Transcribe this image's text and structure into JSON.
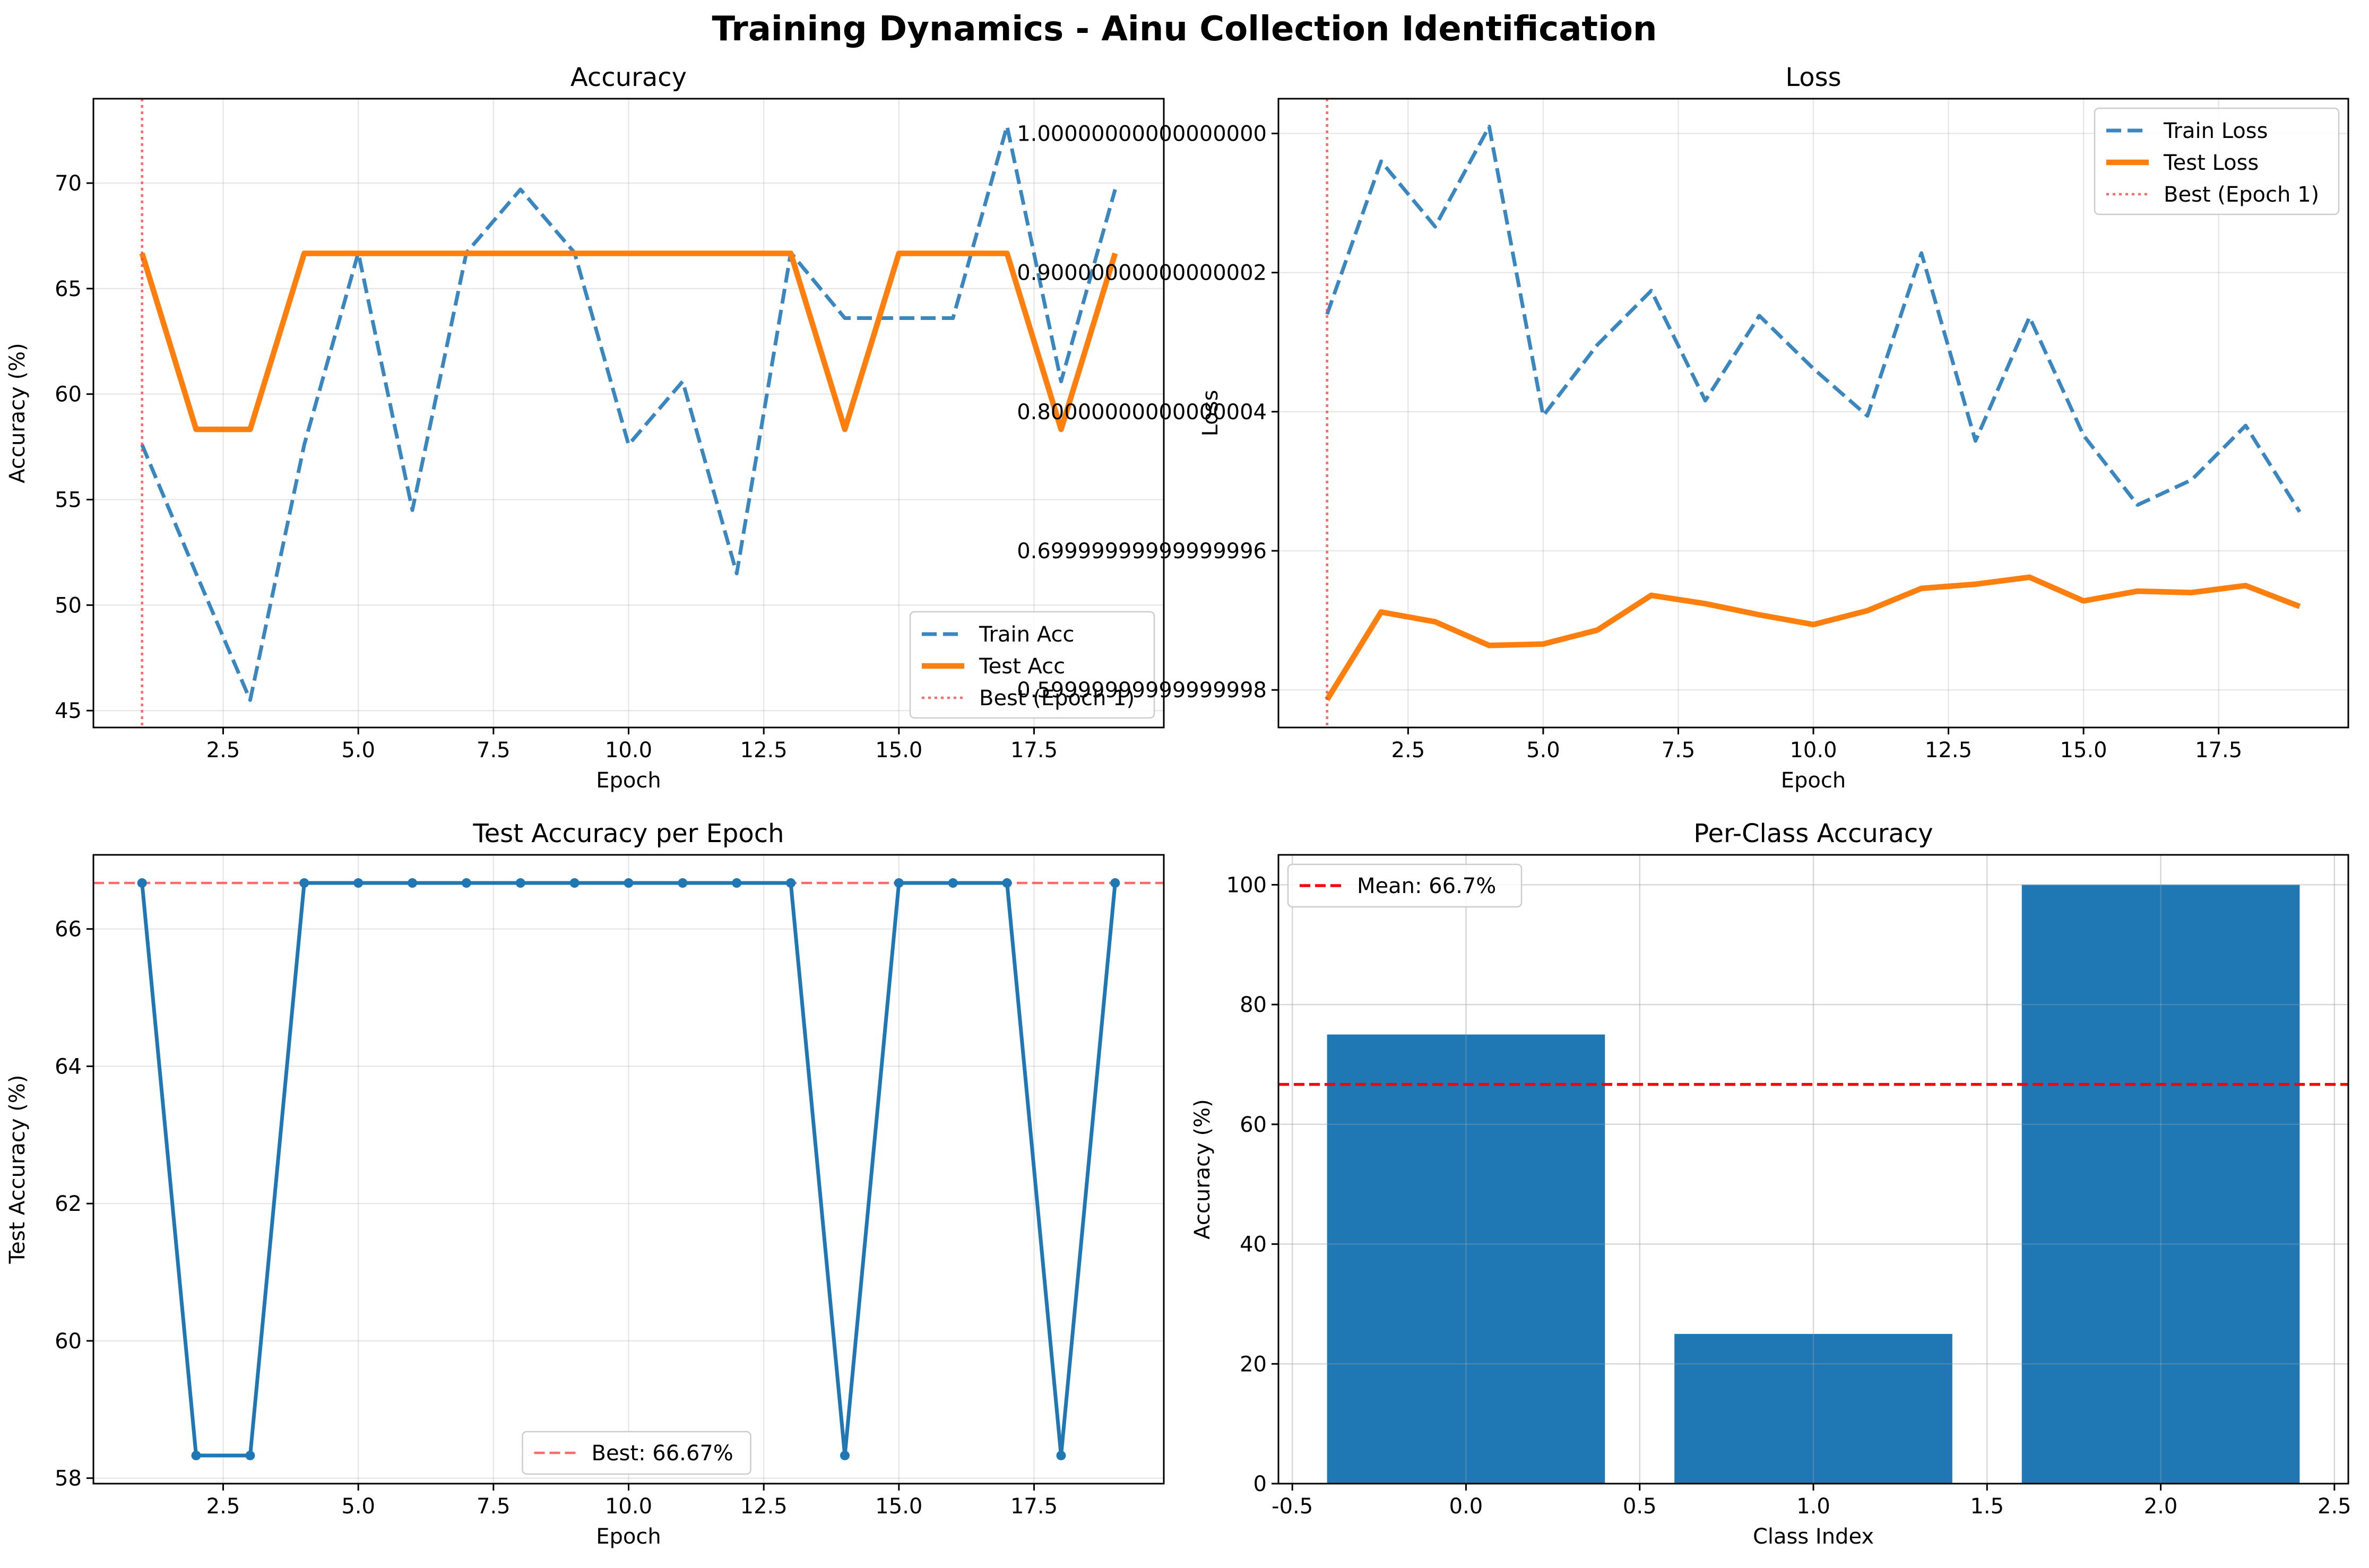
{
  "title": "Training Dynamics - Ainu Collection Identification",
  "colors": {
    "train": "#3a87c0",
    "test": "#ff7f0e",
    "best": "#ff4444",
    "bar": "#1f77b4",
    "mean": "#ff0000",
    "line": "#1f77b4"
  },
  "chart_data": [
    {
      "type": "line",
      "title": "Accuracy",
      "xlabel": "Epoch",
      "ylabel": "Accuracy (%)",
      "xlim": [
        0.1,
        19.9
      ],
      "ylim": [
        44.2,
        74.0
      ],
      "xticks": [
        2.5,
        5.0,
        7.5,
        10.0,
        12.5,
        15.0,
        17.5
      ],
      "yticks": [
        45,
        50,
        55,
        60,
        65,
        70
      ],
      "x": [
        1,
        2,
        3,
        4,
        5,
        6,
        7,
        8,
        9,
        10,
        11,
        12,
        13,
        14,
        15,
        16,
        17,
        18,
        19
      ],
      "series": [
        {
          "name": "Train Acc",
          "style": "dashed",
          "values": [
            57.6,
            51.5,
            45.5,
            57.6,
            66.7,
            54.5,
            66.7,
            69.7,
            66.7,
            57.6,
            60.6,
            51.5,
            66.7,
            63.6,
            63.6,
            63.6,
            72.7,
            60.6,
            69.7
          ]
        },
        {
          "name": "Test Acc",
          "style": "solid",
          "values": [
            66.67,
            58.33,
            58.33,
            66.67,
            66.67,
            66.67,
            66.67,
            66.67,
            66.67,
            66.67,
            66.67,
            66.67,
            66.67,
            58.33,
            66.67,
            66.67,
            66.67,
            58.33,
            66.67
          ]
        }
      ],
      "vline": {
        "x": 1,
        "label": "Best (Epoch 1)"
      },
      "legend": "lower-right",
      "grid": true
    },
    {
      "type": "line",
      "title": "Loss",
      "xlabel": "Epoch",
      "ylabel": "Loss",
      "xlim": [
        0.1,
        19.9
      ],
      "ylim": [
        0.573,
        1.025
      ],
      "xticks": [
        2.5,
        5.0,
        7.5,
        10.0,
        12.5,
        15.0,
        17.5
      ],
      "yticks": [
        0.6,
        0.7,
        0.8,
        0.9,
        1.0
      ],
      "x": [
        1,
        2,
        3,
        4,
        5,
        6,
        7,
        8,
        9,
        10,
        11,
        12,
        13,
        14,
        15,
        16,
        17,
        18,
        19
      ],
      "series": [
        {
          "name": "Train Loss",
          "style": "dashed",
          "values": [
            0.87,
            0.98,
            0.933,
            1.005,
            0.797,
            0.848,
            0.887,
            0.808,
            0.869,
            0.831,
            0.797,
            0.914,
            0.779,
            0.868,
            0.783,
            0.733,
            0.751,
            0.79,
            0.728
          ]
        },
        {
          "name": "Test Loss",
          "style": "solid",
          "values": [
            0.593,
            0.656,
            0.649,
            0.632,
            0.633,
            0.643,
            0.668,
            0.662,
            0.654,
            0.647,
            0.657,
            0.673,
            0.676,
            0.681,
            0.664,
            0.671,
            0.67,
            0.675,
            0.66
          ]
        }
      ],
      "vline": {
        "x": 1,
        "label": "Best (Epoch 1)"
      },
      "legend": "top-right",
      "grid": true
    },
    {
      "type": "line",
      "title": "Test Accuracy per Epoch",
      "xlabel": "Epoch",
      "ylabel": "Test Accuracy (%)",
      "xlim": [
        0.1,
        19.9
      ],
      "ylim": [
        57.92,
        67.08
      ],
      "xticks": [
        2.5,
        5.0,
        7.5,
        10.0,
        12.5,
        15.0,
        17.5
      ],
      "yticks": [
        58,
        60,
        62,
        64,
        66
      ],
      "x": [
        1,
        2,
        3,
        4,
        5,
        6,
        7,
        8,
        9,
        10,
        11,
        12,
        13,
        14,
        15,
        16,
        17,
        18,
        19
      ],
      "series": [
        {
          "name": "",
          "style": "solid-markers",
          "values": [
            66.67,
            58.33,
            58.33,
            66.67,
            66.67,
            66.67,
            66.67,
            66.67,
            66.67,
            66.67,
            66.67,
            66.67,
            66.67,
            58.33,
            66.67,
            66.67,
            66.67,
            58.33,
            66.67
          ]
        }
      ],
      "hline": {
        "y": 66.67,
        "label": "Best: 66.67%"
      },
      "legend": "bottom-center",
      "grid": true
    },
    {
      "type": "bar",
      "title": "Per-Class Accuracy",
      "xlabel": "Class Index",
      "ylabel": "Accuracy (%)",
      "xlim": [
        -0.54,
        2.54
      ],
      "ylim": [
        0,
        105
      ],
      "xticks": [
        -0.5,
        0.0,
        0.5,
        1.0,
        1.5,
        2.0,
        2.5
      ],
      "yticks": [
        0,
        20,
        40,
        60,
        80,
        100
      ],
      "categories": [
        0,
        1,
        2
      ],
      "values": [
        75,
        25,
        100
      ],
      "hline": {
        "y": 66.67,
        "label": "Mean: 66.7%"
      },
      "legend": "top-left",
      "grid": true
    }
  ]
}
